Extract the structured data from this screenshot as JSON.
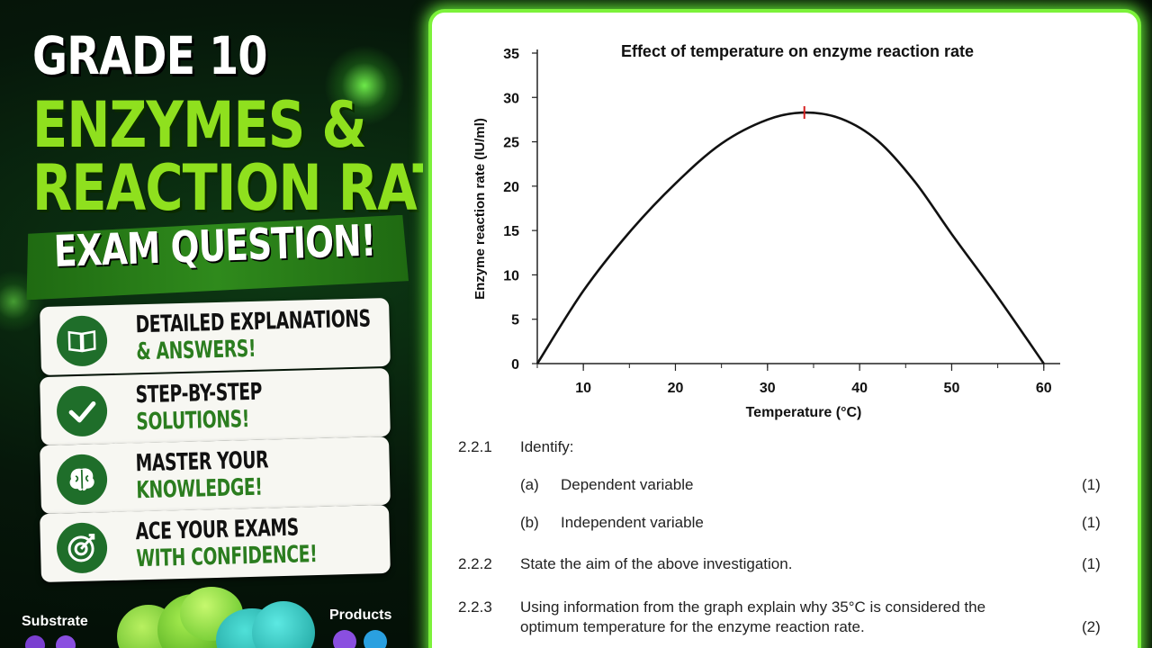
{
  "hero": {
    "line1": "GRADE 10",
    "line2": "ENZYMES &",
    "line3": "REACTION RATE",
    "banner": "EXAM QUESTION!"
  },
  "features": [
    {
      "icon": "book-icon",
      "line1": "DETAILED EXPLANATIONS",
      "line2": "& ANSWERS!"
    },
    {
      "icon": "checkmark-icon",
      "line1": "STEP-BY-STEP",
      "line2": "SOLUTIONS!"
    },
    {
      "icon": "brain-icon",
      "line1": "MASTER YOUR",
      "line2": "KNOWLEDGE!"
    },
    {
      "icon": "target-icon",
      "line1": "ACE YOUR EXAMS",
      "line2": "WITH CONFIDENCE!"
    }
  ],
  "molecule": {
    "substrate_label": "Substrate",
    "products_label": "Products"
  },
  "colors": {
    "accent": "#8fe01e",
    "panel_border": "#7cf23a",
    "icon_bg": "#1f6e2a",
    "peak_marker": "#d62020"
  },
  "chart_data": {
    "type": "line",
    "title": "Effect of temperature on enzyme reaction rate",
    "xlabel": "Temperature (°C)",
    "ylabel": "Enzyme reaction rate (IU/ml)",
    "xlim": [
      5,
      61
    ],
    "ylim": [
      0,
      35
    ],
    "xticks": [
      10,
      20,
      30,
      40,
      50,
      60
    ],
    "yticks": [
      0,
      5,
      10,
      15,
      20,
      25,
      30,
      35
    ],
    "grid": false,
    "series": [
      {
        "x": [
          5,
          10,
          15,
          20,
          25,
          30,
          34,
          38,
          42,
          46,
          50,
          55,
          60
        ],
        "values": [
          0,
          8.2,
          14.8,
          20.3,
          24.8,
          27.5,
          28.3,
          27.6,
          25.1,
          20.5,
          14.6,
          7.5,
          0
        ]
      }
    ],
    "peak_marker": {
      "x": 34,
      "y": 28.3
    }
  },
  "questions": [
    {
      "num": "2.2.1",
      "text": "Identify:",
      "marks": ""
    },
    {
      "num": "",
      "sub": "(a)",
      "text": "Dependent variable",
      "marks": "(1)"
    },
    {
      "num": "",
      "sub": "(b)",
      "text": "Independent variable",
      "marks": "(1)"
    },
    {
      "num": "2.2.2",
      "text": "State the aim of the above investigation.",
      "marks": "(1)"
    },
    {
      "num": "2.2.3",
      "text": "Using information from the graph explain why 35°C is considered the",
      "text2": "optimum temperature for the enzyme reaction rate.",
      "marks": "(2)"
    }
  ]
}
